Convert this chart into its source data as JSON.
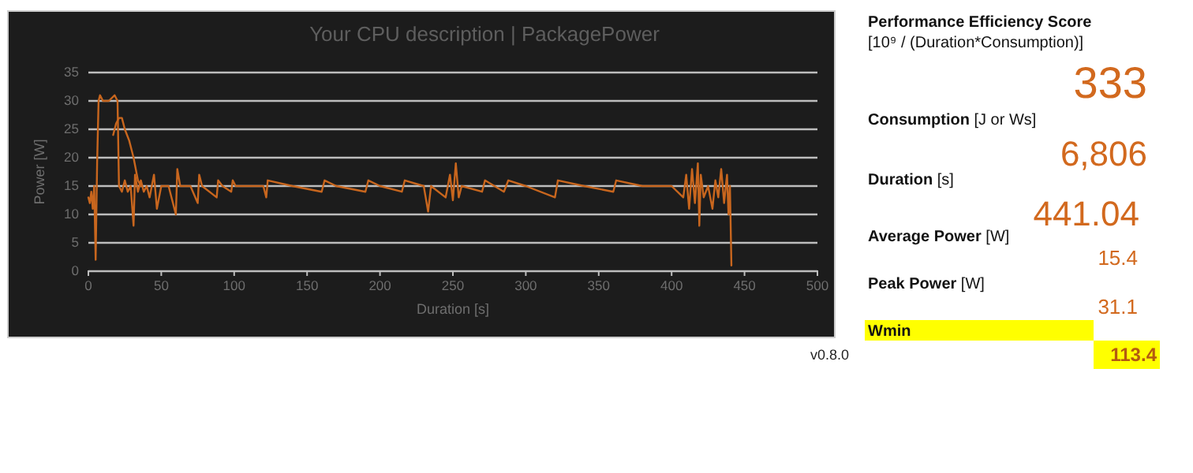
{
  "chart_data": [
    {
      "type": "line",
      "title": "Your CPU description | PackagePower",
      "xlabel": "Duration [s]",
      "ylabel": "Power [W]",
      "xlim": [
        0,
        500
      ],
      "xticks": [
        0,
        50,
        100,
        150,
        200,
        250,
        300,
        350,
        400,
        450,
        500
      ],
      "ylim": [
        0,
        35
      ],
      "yticks": [
        0,
        5,
        10,
        15,
        20,
        25,
        30,
        35
      ],
      "grid": "y",
      "annotations": [
        "v0.8.0"
      ],
      "series": [
        {
          "color": "#c8661e",
          "x": [
            0,
            1,
            2,
            3,
            4,
            5,
            6,
            7,
            8,
            10,
            14,
            18,
            20,
            21,
            23,
            25,
            27,
            29,
            31,
            32,
            34,
            36,
            38,
            40,
            42,
            45,
            47,
            50,
            55,
            60,
            61,
            63,
            70,
            75,
            76,
            78,
            88,
            89,
            92,
            98,
            99,
            101,
            120,
            122,
            123,
            140,
            160,
            162,
            170,
            190,
            192,
            200,
            215,
            217,
            230,
            233,
            235,
            245,
            248,
            250,
            252,
            254,
            256,
            270,
            272,
            285,
            288,
            300,
            320,
            322,
            340,
            360,
            362,
            380,
            400,
            408,
            410,
            412,
            414,
            416,
            418,
            419,
            420,
            422,
            425,
            428,
            430,
            432,
            434,
            436,
            438,
            439,
            440,
            441
          ],
          "values": [
            13,
            12,
            14,
            11,
            15,
            2,
            19,
            30,
            31,
            30,
            30,
            31,
            30,
            15,
            14,
            16,
            14,
            15,
            8,
            17,
            14,
            16,
            14,
            15,
            13,
            17,
            11,
            15,
            15,
            10,
            18,
            15,
            15,
            12,
            17,
            15,
            13,
            16,
            15,
            14,
            16,
            15,
            15,
            13,
            16,
            15,
            14,
            16,
            15,
            14,
            16,
            15,
            14,
            16,
            15,
            10.5,
            15,
            13,
            17,
            12.5,
            19,
            13,
            15,
            14,
            16,
            14,
            16,
            15,
            13,
            16,
            15,
            14,
            16,
            15,
            15,
            13,
            17,
            11,
            18,
            12,
            19,
            8,
            17,
            13,
            15,
            11,
            16,
            13,
            18,
            12,
            17,
            10,
            15,
            1
          ]
        },
        {
          "color": "#c8661e",
          "x": [
            17,
            19,
            21,
            23,
            25,
            28,
            31,
            34,
            36
          ],
          "values": [
            24,
            26,
            27,
            27,
            25,
            23,
            20,
            16,
            15
          ]
        }
      ]
    },
    {
      "type": "other",
      "annotations": [
        "Performance Efficiency Score",
        "[10⁹ / (Duration*Consumption)]",
        "333",
        "Consumption [J or Ws]",
        "6,806",
        "Duration [s]",
        "441.04",
        "Average Power [W]",
        "15.4",
        "Peak Power [W]",
        "31.1",
        "Wmin",
        "113.4"
      ]
    }
  ]
}
